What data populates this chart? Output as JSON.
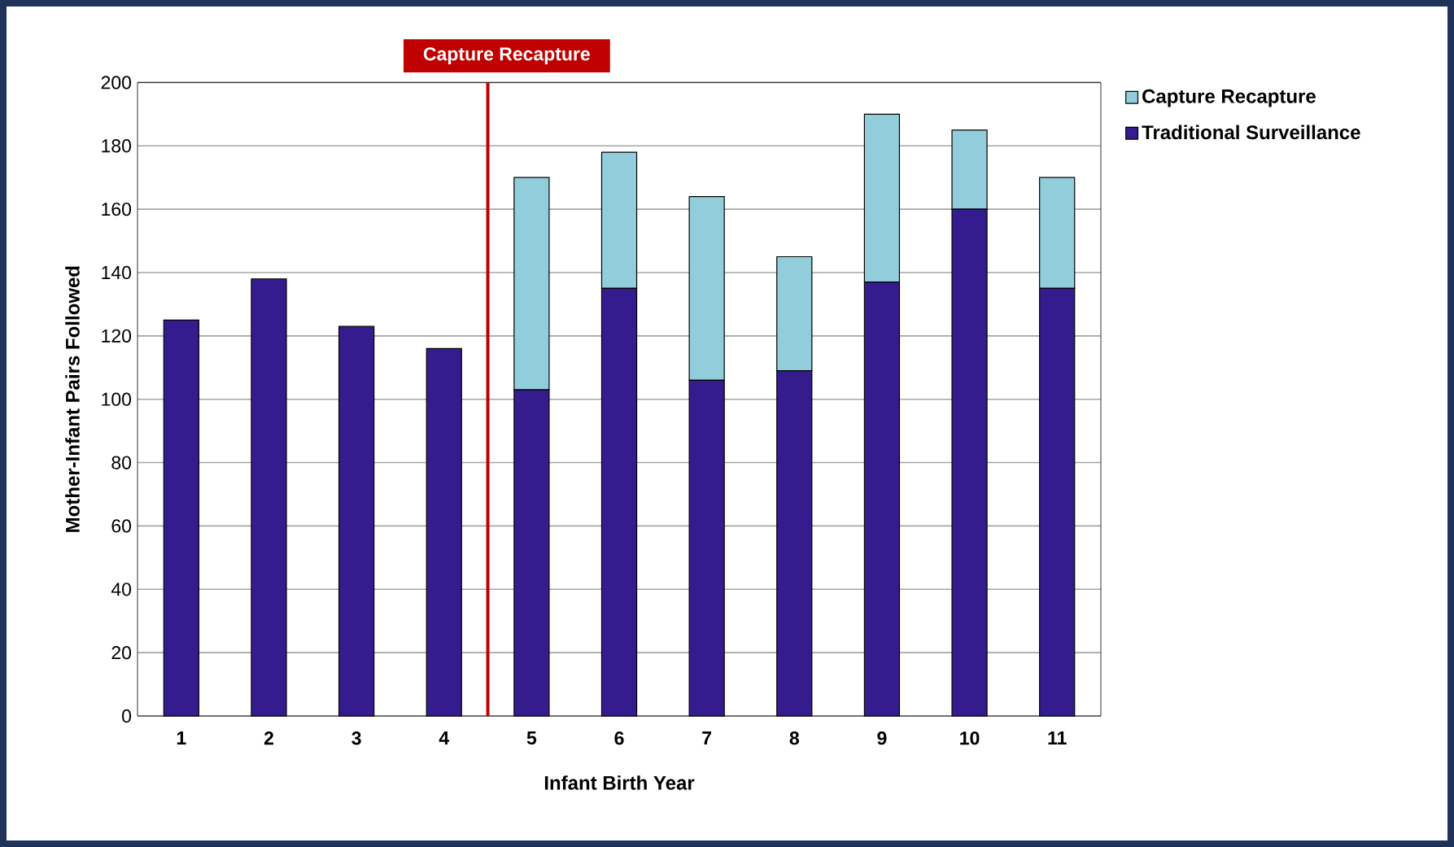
{
  "chart_data": {
    "type": "bar",
    "stacked": true,
    "xlabel": "Infant Birth Year",
    "ylabel": "Mother-Infant Pairs Followed",
    "x": [
      1,
      2,
      3,
      4,
      5,
      6,
      7,
      8,
      9,
      10,
      11
    ],
    "xlim": [
      0.5,
      11.5
    ],
    "xticks": [
      1,
      2,
      3,
      4,
      5,
      6,
      7,
      8,
      9,
      10,
      11
    ],
    "ylim": [
      0,
      200
    ],
    "yticks": [
      0,
      20,
      40,
      60,
      80,
      100,
      120,
      140,
      160,
      180,
      200
    ],
    "series": [
      {
        "name": "Traditional Surveillance",
        "color": "#341c8e",
        "values": [
          125,
          138,
          123,
          116,
          103,
          135,
          106,
          109,
          137,
          160,
          135
        ]
      },
      {
        "name": "Capture Recapture",
        "color": "#92cddc",
        "values": [
          null,
          null,
          null,
          null,
          67,
          43,
          58,
          36,
          53,
          25,
          35
        ]
      }
    ],
    "ref_lines": [
      {
        "axis": "x",
        "value": 4.5,
        "label": "Capture Recapture",
        "color": "#c00000"
      }
    ],
    "grid": "y",
    "legend": "right"
  }
}
